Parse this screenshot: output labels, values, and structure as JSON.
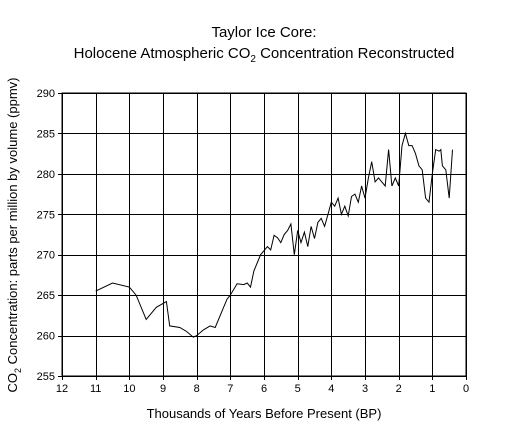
{
  "chart_data": {
    "type": "line",
    "title": "Taylor Ice Core:",
    "subtitle_prefix": "Holocene Atmospheric CO",
    "subtitle_subscript": "2",
    "subtitle_suffix": " Concentration Reconstructed",
    "xlabel": "Thousands of Years Before Present (BP)",
    "ylabel_prefix": "CO",
    "ylabel_subscript": "2",
    "ylabel_suffix": " Concentration: parts per million by volume (ppmv)",
    "xlim": [
      12,
      0
    ],
    "x_reversed": true,
    "ylim": [
      255,
      290
    ],
    "x_ticks": [
      12,
      11,
      10,
      9,
      8,
      7,
      6,
      5,
      4,
      3,
      2,
      1,
      0
    ],
    "y_ticks": [
      255,
      260,
      265,
      270,
      275,
      280,
      285,
      290
    ],
    "grid": true,
    "series": [
      {
        "color": "#000000",
        "x": [
          11.0,
          10.5,
          10.0,
          9.8,
          9.5,
          9.2,
          8.9,
          8.8,
          8.5,
          8.3,
          8.1,
          8.0,
          7.8,
          7.6,
          7.45,
          7.3,
          7.1,
          7.0,
          6.8,
          6.6,
          6.5,
          6.4,
          6.3,
          6.1,
          6.0,
          5.9,
          5.8,
          5.7,
          5.6,
          5.5,
          5.4,
          5.3,
          5.2,
          5.1,
          5.0,
          4.9,
          4.8,
          4.7,
          4.6,
          4.5,
          4.4,
          4.3,
          4.2,
          4.1,
          4.0,
          3.9,
          3.8,
          3.7,
          3.6,
          3.5,
          3.4,
          3.3,
          3.2,
          3.1,
          3.0,
          2.9,
          2.8,
          2.7,
          2.6,
          2.5,
          2.4,
          2.3,
          2.2,
          2.1,
          2.0,
          1.9,
          1.8,
          1.7,
          1.6,
          1.5,
          1.4,
          1.3,
          1.2,
          1.1,
          1.0,
          0.9,
          0.8,
          0.75,
          0.7,
          0.6,
          0.5,
          0.4
        ],
        "y": [
          265.5,
          266.5,
          266.0,
          265.0,
          262.0,
          263.5,
          264.2,
          261.2,
          261.0,
          260.5,
          259.8,
          260.0,
          260.7,
          261.2,
          261.0,
          262.5,
          264.5,
          265.0,
          266.4,
          266.3,
          266.5,
          266.0,
          268.0,
          270.0,
          270.5,
          271.0,
          270.6,
          272.4,
          272.1,
          271.5,
          272.5,
          273.0,
          273.8,
          270.0,
          273.0,
          271.5,
          272.8,
          271.0,
          273.5,
          272.0,
          274.0,
          274.5,
          273.5,
          275.0,
          276.5,
          276.0,
          277.0,
          275.0,
          276.0,
          274.8,
          277.2,
          277.5,
          276.5,
          278.5,
          277.0,
          279.5,
          281.5,
          279.0,
          279.5,
          279.0,
          278.5,
          283.0,
          278.5,
          279.5,
          278.5,
          283.5,
          285.0,
          283.5,
          283.5,
          282.5,
          281.0,
          280.5,
          277.0,
          276.5,
          280.0,
          283.0,
          282.8,
          283.0,
          281.0,
          280.5,
          277.0,
          283.0
        ]
      }
    ]
  }
}
